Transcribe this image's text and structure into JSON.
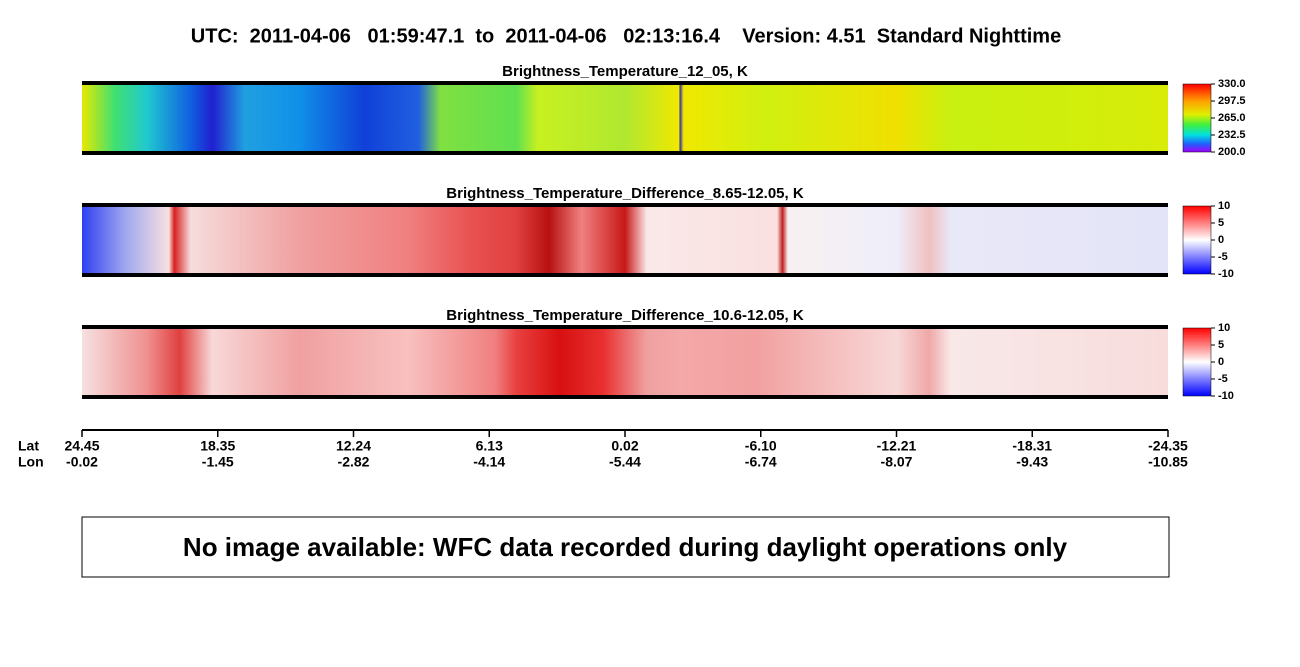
{
  "header": {
    "title": "UTC:  2011-04-06   01:59:47.1  to  2011-04-06   02:13:16.4    Version: 4.51  Standard Nighttime"
  },
  "panels": [
    {
      "title": "Brightness_Temperature_12_05, K",
      "colorbar": [
        "330.0",
        "297.5",
        "265.0",
        "232.5",
        "200.0"
      ]
    },
    {
      "title": "Brightness_Temperature_Difference_8.65-12.05, K",
      "colorbar": [
        "10",
        "5",
        "0",
        "-5",
        "-10"
      ]
    },
    {
      "title": "Brightness_Temperature_Difference_10.6-12.05, K",
      "colorbar": [
        "10",
        "5",
        "0",
        "-5",
        "-10"
      ]
    }
  ],
  "x_axis": {
    "lat_label": "Lat",
    "lon_label": "Lon",
    "lat": [
      "24.45",
      "18.35",
      "12.24",
      "6.13",
      "0.02",
      "-6.10",
      "-12.21",
      "-18.31",
      "-24.35"
    ],
    "lon": [
      "-0.02",
      "-1.45",
      "-2.82",
      "-4.14",
      "-5.44",
      "-6.74",
      "-8.07",
      "-9.43",
      "-10.85"
    ]
  },
  "message": "No image available: WFC data recorded during daylight operations only"
}
